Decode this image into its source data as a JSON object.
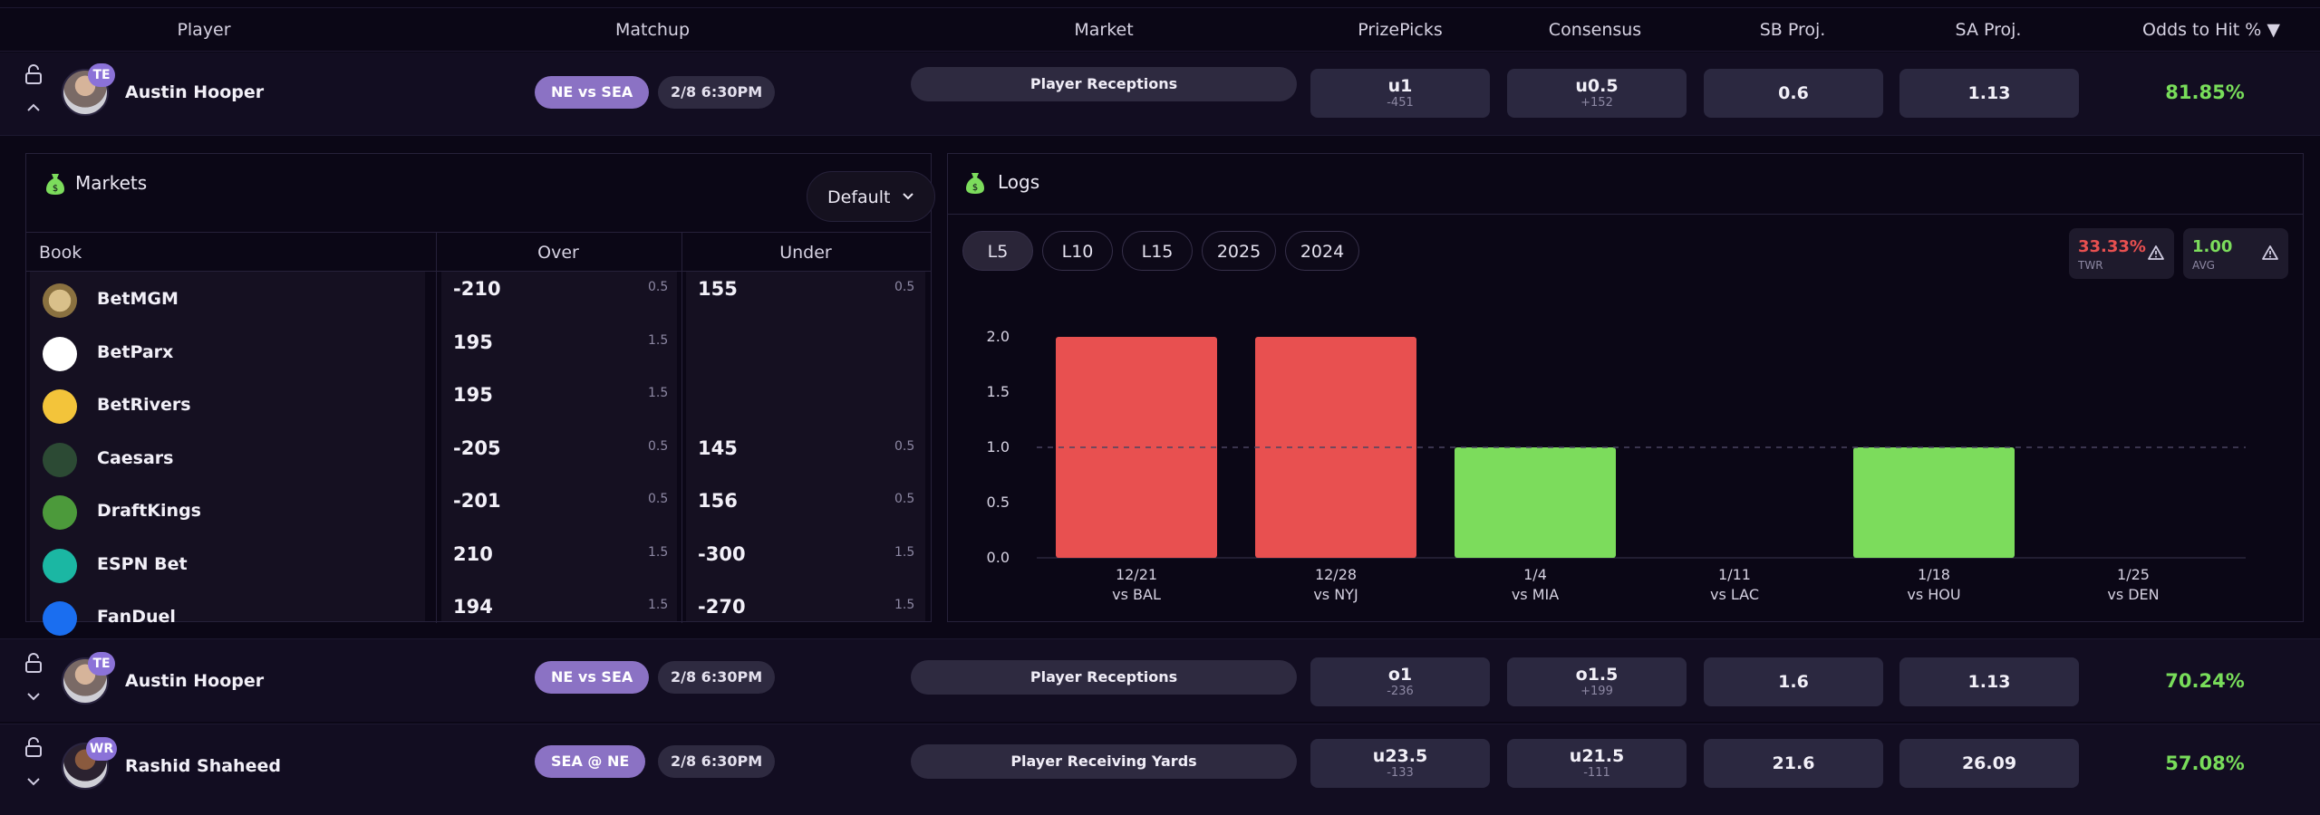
{
  "header": {
    "player": "Player",
    "matchup": "Matchup",
    "market": "Market",
    "prizepicks": "PrizePicks",
    "consensus": "Consensus",
    "sb_proj": "SB Proj.",
    "sa_proj": "SA Proj.",
    "odds_to_hit": "Odds to Hit % ▼"
  },
  "rows": [
    {
      "position": "TE",
      "player": "Austin Hooper",
      "matchup": "NE vs SEA",
      "time": "2/8 6:30PM",
      "market": "Player Receptions",
      "prizepicks": {
        "line": "u1",
        "odds": "-451"
      },
      "consensus": {
        "line": "u0.5",
        "odds": "+152"
      },
      "sb_proj": "0.6",
      "sa_proj": "1.13",
      "odds_to_hit": "81.85%",
      "expanded": true
    },
    {
      "position": "TE",
      "player": "Austin Hooper",
      "matchup": "NE vs SEA",
      "time": "2/8 6:30PM",
      "market": "Player Receptions",
      "prizepicks": {
        "line": "o1",
        "odds": "-236"
      },
      "consensus": {
        "line": "o1.5",
        "odds": "+199"
      },
      "sb_proj": "1.6",
      "sa_proj": "1.13",
      "odds_to_hit": "70.24%",
      "expanded": false
    },
    {
      "position": "WR",
      "player": "Rashid Shaheed",
      "matchup": "SEA @ NE",
      "time": "2/8 6:30PM",
      "market": "Player Receiving Yards",
      "prizepicks": {
        "line": "u23.5",
        "odds": "-133"
      },
      "consensus": {
        "line": "u21.5",
        "odds": "-111"
      },
      "sb_proj": "21.6",
      "sa_proj": "26.09",
      "odds_to_hit": "57.08%",
      "expanded": false
    }
  ],
  "markets": {
    "title": "Markets",
    "dropdown": "Default",
    "columns": {
      "book": "Book",
      "over": "Over",
      "under": "Under"
    },
    "books": [
      {
        "name": "BetMGM",
        "logo": "betmgm-logo",
        "over": "-210",
        "over_line": "0.5",
        "under": "155",
        "under_line": "0.5"
      },
      {
        "name": "BetParx",
        "logo": "betparx-logo",
        "over": "195",
        "over_line": "1.5",
        "under": "",
        "under_line": ""
      },
      {
        "name": "BetRivers",
        "logo": "betrivers-logo",
        "over": "195",
        "over_line": "1.5",
        "under": "",
        "under_line": ""
      },
      {
        "name": "Caesars",
        "logo": "caesars-logo",
        "over": "-205",
        "over_line": "0.5",
        "under": "145",
        "under_line": "0.5"
      },
      {
        "name": "DraftKings",
        "logo": "draftkings-logo",
        "over": "-201",
        "over_line": "0.5",
        "under": "156",
        "under_line": "0.5"
      },
      {
        "name": "ESPN Bet",
        "logo": "espnbet-logo",
        "over": "210",
        "over_line": "1.5",
        "under": "-300",
        "under_line": "1.5"
      },
      {
        "name": "FanDuel",
        "logo": "fanduel-logo",
        "over": "194",
        "over_line": "1.5",
        "under": "-270",
        "under_line": "1.5"
      }
    ]
  },
  "logs": {
    "title": "Logs",
    "filters": [
      "L5",
      "L10",
      "L15",
      "2025",
      "2024"
    ],
    "active_filter": "L5",
    "twr": {
      "value": "33.33%",
      "label": "TWR"
    },
    "avg": {
      "value": "1.00",
      "label": "AVG"
    }
  },
  "chart_data": {
    "type": "bar",
    "categories": [
      "12/21 vs BAL",
      "12/28 vs NYJ",
      "1/4 vs MIA",
      "1/11 vs LAC",
      "1/18 vs HOU",
      "1/25 vs DEN"
    ],
    "dates": [
      "12/21",
      "12/28",
      "1/4",
      "1/11",
      "1/18",
      "1/25"
    ],
    "opponents": [
      "vs BAL",
      "vs NYJ",
      "vs MIA",
      "vs LAC",
      "vs HOU",
      "vs DEN"
    ],
    "values": [
      2,
      2,
      1,
      null,
      1,
      null
    ],
    "line": 1.0,
    "ylim": [
      0,
      2
    ],
    "yticks": [
      "0.0",
      "0.5",
      "1.0",
      "1.5",
      "2.0"
    ],
    "bar_colors": [
      "#e85050",
      "#e85050",
      "#7cdc5c",
      null,
      "#7cdc5c",
      null
    ],
    "grid": false
  },
  "colors": {
    "accent": "#8b72c4",
    "hit": "#7cdc5c",
    "miss": "#e85050",
    "odds_text": "#78dd5a"
  }
}
